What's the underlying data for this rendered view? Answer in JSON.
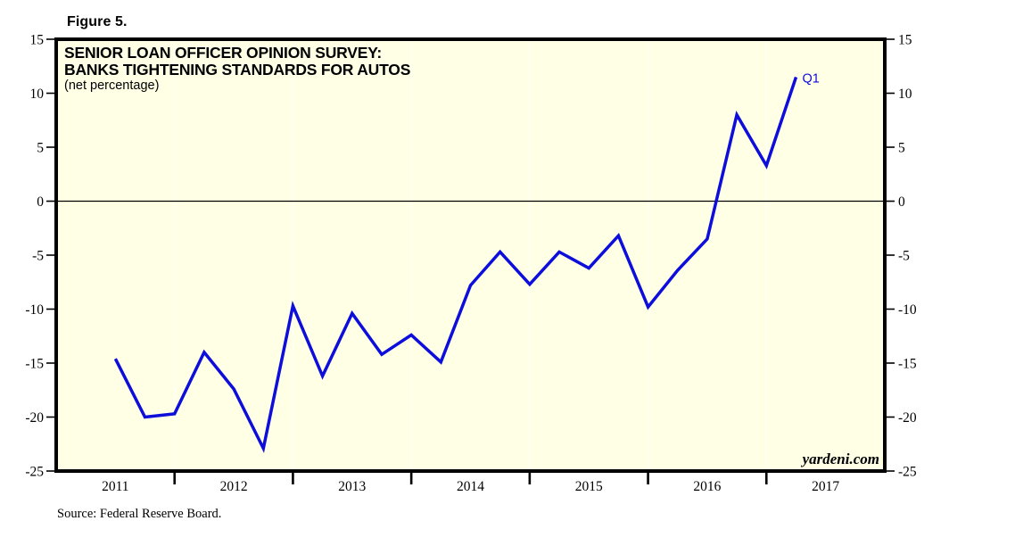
{
  "figure": {
    "label": "Figure 5.",
    "source": "Source: Federal Reserve Board."
  },
  "chart": {
    "title_line1": "SENIOR LOAN OFFICER OPINION SURVEY:",
    "title_line2": "BANKS TIGHTENING STANDARDS FOR AUTOS",
    "subtitle": "(net percentage)",
    "watermark": "yardeni.com"
  },
  "chart_data": {
    "type": "line",
    "x_quarters": [
      "2011 Q2",
      "2011 Q3",
      "2011 Q4",
      "2012 Q1",
      "2012 Q2",
      "2012 Q3",
      "2012 Q4",
      "2013 Q1",
      "2013 Q2",
      "2013 Q3",
      "2013 Q4",
      "2014 Q1",
      "2014 Q2",
      "2014 Q3",
      "2014 Q4",
      "2015 Q1",
      "2015 Q2",
      "2015 Q3",
      "2015 Q4",
      "2016 Q1",
      "2016 Q2",
      "2016 Q3",
      "2016 Q4",
      "2017 Q1"
    ],
    "values": [
      -14.6,
      -20.0,
      -19.7,
      -14.0,
      -17.4,
      -22.9,
      -9.7,
      -16.2,
      -10.4,
      -14.2,
      -12.4,
      -14.9,
      -7.8,
      -4.7,
      -7.7,
      -4.7,
      -6.2,
      -3.2,
      -9.8,
      -6.4,
      -3.5,
      8.0,
      3.3,
      11.5
    ],
    "x_start_year": 2011.5,
    "x_step": 0.25,
    "xlim": [
      2011,
      2018
    ],
    "ylim": [
      -25,
      15
    ],
    "y_ticks": [
      15,
      10,
      5,
      0,
      -5,
      -10,
      -15,
      -20,
      -25
    ],
    "x_tick_years": [
      2012,
      2013,
      2014,
      2015,
      2016,
      2017
    ],
    "x_tick_labels": [
      "2011",
      "2012",
      "2013",
      "2014",
      "2015",
      "2016",
      "2017"
    ],
    "zero_line": 0,
    "last_point_label": "Q1",
    "grid": "zero-line-only",
    "legend": "none",
    "line_color": "#0d0ddc",
    "plot_bg": "#ffffe5",
    "axis_color": "#000000"
  }
}
